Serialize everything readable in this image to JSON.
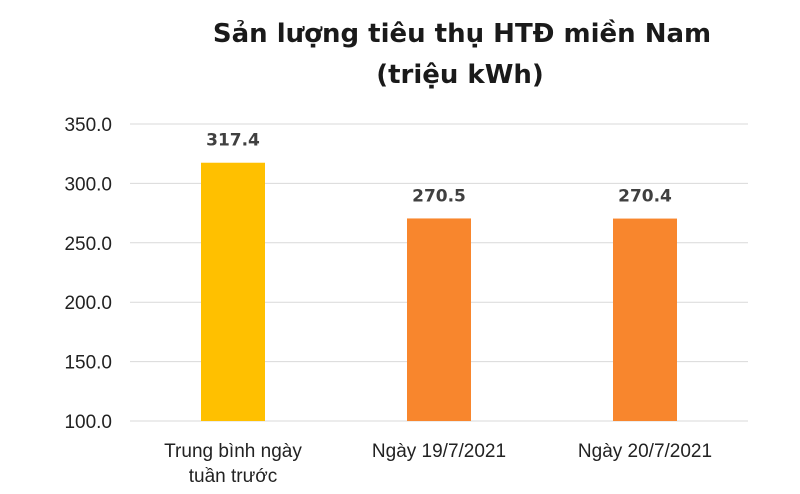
{
  "chart_data": {
    "type": "bar",
    "title": "Sản lượng tiêu thụ HTĐ miền Nam",
    "subtitle": "(triệu kWh)",
    "categories": [
      [
        "Trung bình ngày",
        "tuần trước"
      ],
      [
        "Ngày 19/7/2021"
      ],
      [
        "Ngày 20/7/2021"
      ]
    ],
    "values": [
      317.4,
      270.5,
      270.4
    ],
    "value_labels": [
      "317.4",
      "270.5",
      "270.4"
    ],
    "colors": [
      "#FFC000",
      "#F8862D",
      "#F8862D"
    ],
    "ylim": [
      100,
      350
    ],
    "yticks": [
      100,
      150,
      200,
      250,
      300,
      350
    ],
    "ytick_labels": [
      "100.0",
      "150.0",
      "200.0",
      "250.0",
      "300.0",
      "350.0"
    ],
    "grid": true,
    "legend": "none"
  }
}
